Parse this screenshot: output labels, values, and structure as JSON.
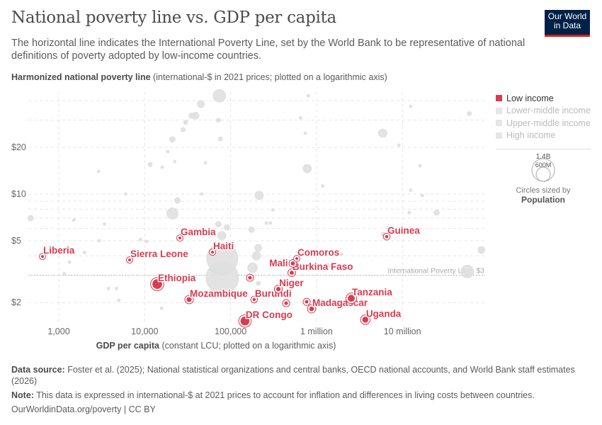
{
  "header": {
    "title": "National poverty line vs. GDP per capita",
    "subtitle": "The horizontal line indicates the International Poverty Line, set by the World Bank to be representative of national definitions of poverty adopted by low-income countries.",
    "logo": "Our World in Data"
  },
  "chart_data": {
    "type": "scatter",
    "title": "National poverty line vs. GDP per capita",
    "xlabel_bold": "GDP per capita",
    "xlabel_rest": " (constant LCU; plotted on a logarithmic axis)",
    "ylabel_bold": "Harmonized national poverty line",
    "ylabel_rest": " (international-$ in 2021 prices; plotted on a logarithmic axis)",
    "x_scale": "log",
    "y_scale": "log",
    "xlim": [
      550,
      60000000
    ],
    "ylim": [
      1.5,
      45
    ],
    "x_ticks": [
      {
        "v": 1000,
        "label": "1,000"
      },
      {
        "v": 10000,
        "label": "10,000"
      },
      {
        "v": 100000,
        "label": "100,000"
      },
      {
        "v": 1000000,
        "label": "1 million"
      },
      {
        "v": 10000000,
        "label": "10 million"
      }
    ],
    "y_ticks": [
      {
        "v": 2,
        "label": "$2"
      },
      {
        "v": 5,
        "label": "$5"
      },
      {
        "v": 10,
        "label": "$10"
      },
      {
        "v": 20,
        "label": "$20"
      }
    ],
    "grid": true,
    "reference_line": {
      "y": 3,
      "label": "International Poverty Line: $3"
    },
    "colors": {
      "low": "#d73c50",
      "other": "#e0e0e0",
      "text_low": "#d73c50"
    },
    "legend": {
      "placement": "right",
      "items": [
        {
          "label": "Low income",
          "active": true
        },
        {
          "label": "Lower-middle income",
          "active": false
        },
        {
          "label": "Upper-middle income",
          "active": false
        },
        {
          "label": "High income",
          "active": false
        }
      ]
    },
    "size_legend": {
      "values": [
        "1.4B",
        "600M"
      ],
      "caption": "Circles sized by",
      "variable": "Population"
    },
    "low_income_points": [
      {
        "label": "Liberia",
        "x": 646,
        "y": 3.96,
        "pop": 5
      },
      {
        "label": "Sierra Leone",
        "x": 6670,
        "y": 3.76,
        "pop": 8
      },
      {
        "label": "Gambia",
        "x": 25700,
        "y": 5.21,
        "pop": 3
      },
      {
        "label": "Haiti",
        "x": 61500,
        "y": 4.22,
        "pop": 11
      },
      {
        "label": "Ethiopia",
        "x": 14000,
        "y": 2.63,
        "pop": 125
      },
      {
        "label": "Mozambique",
        "x": 32900,
        "y": 2.09,
        "pop": 33
      },
      {
        "label": "Burundi",
        "x": 188000,
        "y": 2.09,
        "pop": 13
      },
      {
        "label": "DR Congo",
        "x": 147000,
        "y": 1.52,
        "pop": 105
      },
      {
        "label": "Niger",
        "x": 360000,
        "y": 2.44,
        "pop": 26
      },
      {
        "label": "Burkina Faso",
        "x": 515000,
        "y": 3.11,
        "pop": 23
      },
      {
        "label": "Mali",
        "x": 530000,
        "y": 3.57,
        "pop": 23
      },
      {
        "label": "Comoros",
        "x": 589000,
        "y": 3.84,
        "pop": 1
      },
      {
        "label": "Madagascar",
        "x": 877000,
        "y": 1.82,
        "pop": 30
      },
      {
        "label": "Uganda",
        "x": 3700000,
        "y": 1.55,
        "pop": 48
      },
      {
        "label": "Tanzania",
        "x": 2540000,
        "y": 2.13,
        "pop": 65
      },
      {
        "label": "Guinea",
        "x": 6560000,
        "y": 5.32,
        "pop": 14
      },
      {
        "label": "",
        "x": 168000,
        "y": 2.89,
        "pop": 18
      },
      {
        "label": "",
        "x": 443000,
        "y": 1.98,
        "pop": 18
      },
      {
        "label": "",
        "x": 768000,
        "y": 2.02,
        "pop": 17
      }
    ],
    "other_points": [
      {
        "x": 74000,
        "y": 43,
        "pop": 214
      },
      {
        "x": 45000,
        "y": 38,
        "pop": 66
      },
      {
        "x": 35000,
        "y": 32,
        "pop": 42
      },
      {
        "x": 39000,
        "y": 32,
        "pop": 66
      },
      {
        "x": 30000,
        "y": 29,
        "pop": 24
      },
      {
        "x": 28000,
        "y": 26,
        "pop": 24
      },
      {
        "x": 21000,
        "y": 22.5,
        "pop": 42
      },
      {
        "x": 18600,
        "y": 18.8,
        "pop": 11
      },
      {
        "x": 22400,
        "y": 16.2,
        "pop": 11
      },
      {
        "x": 16000,
        "y": 14.9,
        "pop": 11
      },
      {
        "x": 72000,
        "y": 30,
        "pop": 24
      },
      {
        "x": 2900,
        "y": 14,
        "pop": 11
      },
      {
        "x": 11600,
        "y": 15.5,
        "pop": 24
      },
      {
        "x": 51000,
        "y": 15.9,
        "pop": 11
      },
      {
        "x": 76000,
        "y": 22.7,
        "pop": 24
      },
      {
        "x": 800000,
        "y": 43,
        "pop": 11
      },
      {
        "x": 650000,
        "y": 31,
        "pop": 11
      },
      {
        "x": 740000,
        "y": 24.7,
        "pop": 11
      },
      {
        "x": 5900000,
        "y": 24.7,
        "pop": 95
      },
      {
        "x": 12500000,
        "y": 36.8,
        "pop": 11
      },
      {
        "x": 60000000,
        "y": 33,
        "pop": 24
      },
      {
        "x": 780000,
        "y": 14.6,
        "pop": 95
      },
      {
        "x": 9100000,
        "y": 20.7,
        "pop": 11
      },
      {
        "x": 16000000,
        "y": 15.2,
        "pop": 11
      },
      {
        "x": 1180000,
        "y": 11.3,
        "pop": 11
      },
      {
        "x": 215000,
        "y": 9.8,
        "pop": 95
      },
      {
        "x": 21000,
        "y": 7.5,
        "pop": 170
      },
      {
        "x": 24000,
        "y": 9.1,
        "pop": 42
      },
      {
        "x": 6000,
        "y": 10,
        "pop": 11
      },
      {
        "x": 46000,
        "y": 10,
        "pop": 11
      },
      {
        "x": 470,
        "y": 7,
        "pop": 42
      },
      {
        "x": 1500,
        "y": 6.8,
        "pop": 11
      },
      {
        "x": 79000,
        "y": 5.4,
        "pop": 95
      },
      {
        "x": 72000,
        "y": 6.4,
        "pop": 42
      },
      {
        "x": 91000,
        "y": 6.1,
        "pop": 42
      },
      {
        "x": 175000,
        "y": 5.9,
        "pop": 42
      },
      {
        "x": 80000,
        "y": 3.84,
        "pop": 1280
      },
      {
        "x": 80000,
        "y": 2.89,
        "pop": 1400
      },
      {
        "x": 180000,
        "y": 3.35,
        "pop": 130
      },
      {
        "x": 200000,
        "y": 4.0,
        "pop": 95
      },
      {
        "x": 210000,
        "y": 4.5,
        "pop": 66
      },
      {
        "x": 210000,
        "y": 2.66,
        "pop": 24
      },
      {
        "x": 57000000,
        "y": 3.17,
        "pop": 214
      },
      {
        "x": 83000000,
        "y": 4.36,
        "pop": 66
      },
      {
        "x": 6000000,
        "y": 5.5,
        "pop": 24
      },
      {
        "x": 6900000,
        "y": 6.0,
        "pop": 24
      },
      {
        "x": 25000000,
        "y": 7.6,
        "pop": 42
      },
      {
        "x": 1950000,
        "y": 4.1,
        "pop": 11
      },
      {
        "x": 1350000,
        "y": 3.46,
        "pop": 24
      },
      {
        "x": 3800,
        "y": 2.46,
        "pop": 11
      },
      {
        "x": 4700,
        "y": 2.46,
        "pop": 11
      },
      {
        "x": 5000,
        "y": 2.07,
        "pop": 11
      },
      {
        "x": 3400,
        "y": 6.4,
        "pop": 11
      },
      {
        "x": 8900,
        "y": 5.1,
        "pop": 11
      },
      {
        "x": 10500,
        "y": 4.95,
        "pop": 11
      },
      {
        "x": 2000,
        "y": 4.2,
        "pop": 11
      },
      {
        "x": 2950,
        "y": 5.0,
        "pop": 11
      },
      {
        "x": 1330,
        "y": 3.64,
        "pop": 11
      },
      {
        "x": 1160,
        "y": 3.08,
        "pop": 11
      },
      {
        "x": 15700,
        "y": 1.84,
        "pop": 11
      },
      {
        "x": 17000000,
        "y": 9.8,
        "pop": 11
      },
      {
        "x": 12500000,
        "y": 10.6,
        "pop": 11
      },
      {
        "x": 12000000,
        "y": 7.6,
        "pop": 11
      },
      {
        "x": 290000,
        "y": 6.5,
        "pop": 11
      },
      {
        "x": 260000,
        "y": 6.5,
        "pop": 11
      },
      {
        "x": 310000,
        "y": 7.9,
        "pop": 11
      }
    ]
  },
  "footer": {
    "source_label": "Data source:",
    "source_text": " Foster et al. (2025); National statistical organizations and central banks, OECD national accounts, and World Bank staff estimates (2026)",
    "note_label": "Note:",
    "note_text": " This data is expressed in international-$ at 2021 prices to account for inflation and differences in living costs between countries.",
    "url": "OurWorldinData.org/poverty | CC BY"
  }
}
